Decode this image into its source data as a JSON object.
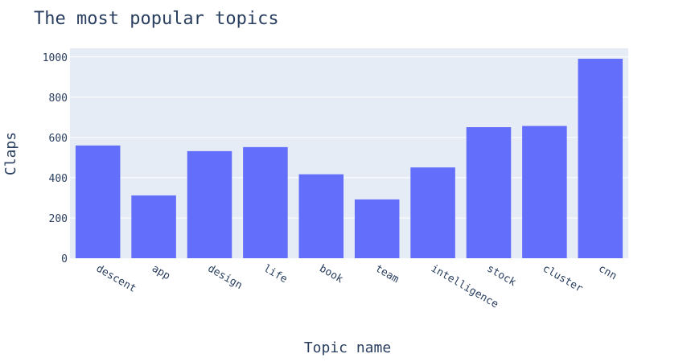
{
  "chart_data": {
    "type": "bar",
    "title": "The most popular topics",
    "xlabel": "Topic name",
    "ylabel": "Claps",
    "categories": [
      "descent",
      "app",
      "design",
      "life",
      "book",
      "team",
      "intelligence",
      "stock",
      "cluster",
      "cnn"
    ],
    "values": [
      560,
      312,
      532,
      552,
      417,
      292,
      451,
      651,
      657,
      991
    ],
    "ylim": [
      0,
      1043
    ],
    "yticks": [
      0,
      200,
      400,
      600,
      800,
      1000
    ],
    "grid": true,
    "colors": {
      "bar": "#636efa",
      "plot_bg": "#e5ecf6",
      "grid": "#ffffff",
      "text": "#2a3f5f"
    }
  }
}
